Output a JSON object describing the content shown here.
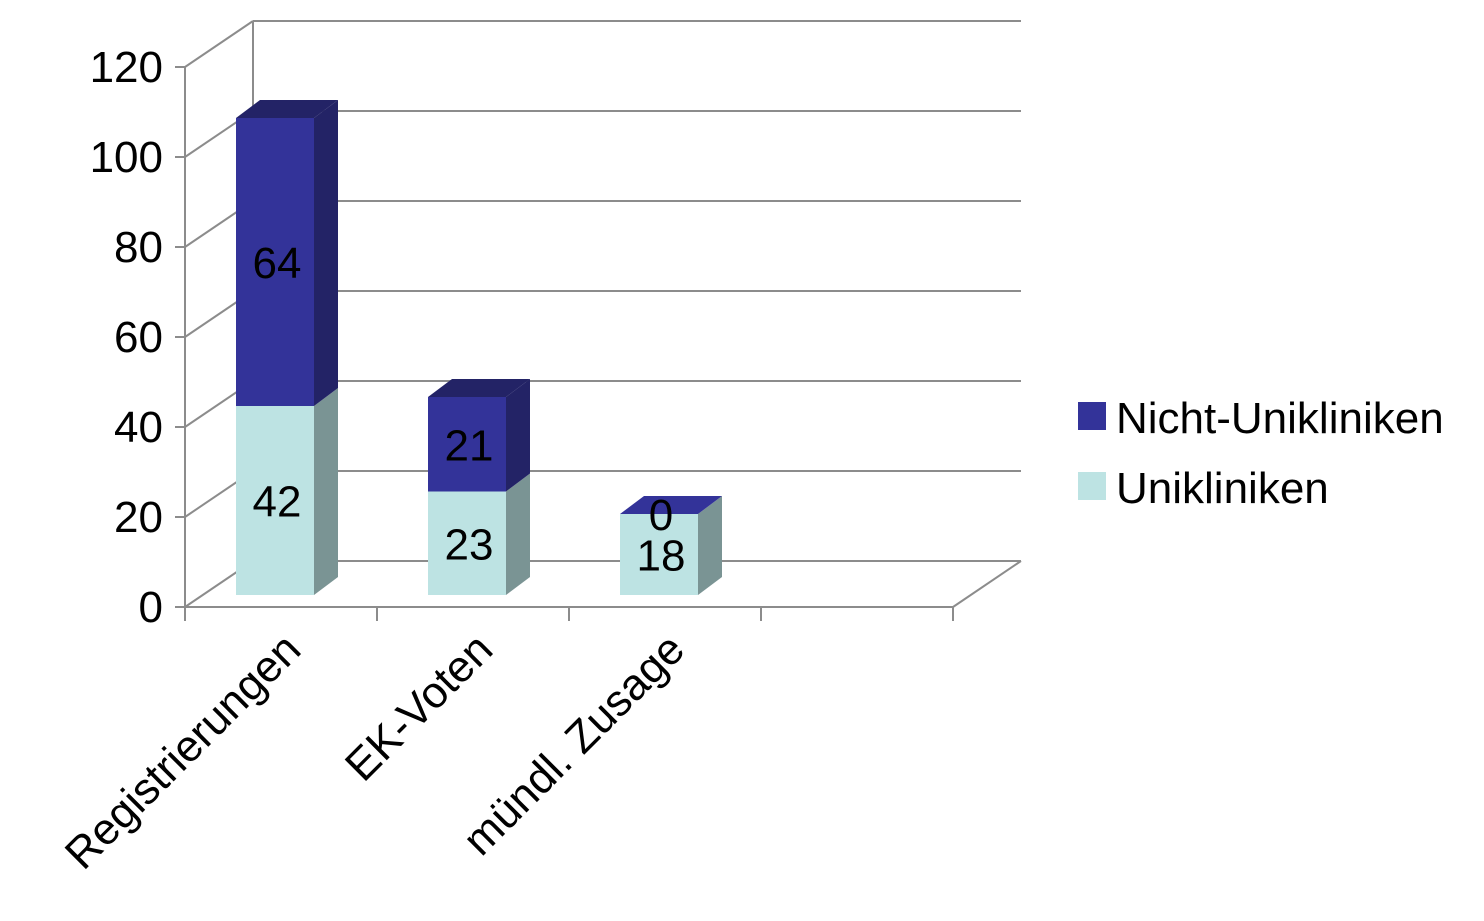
{
  "chart_data": {
    "type": "bar",
    "stacked": true,
    "style": "3d",
    "categories": [
      "Registrierungen",
      "EK-Voten",
      "mündl. Zusage"
    ],
    "series": [
      {
        "name": "Unikliniken",
        "values": [
          42,
          23,
          18
        ],
        "color": "#bde3e3",
        "side_color": "#7a9494"
      },
      {
        "name": "Nicht-Unikliniken",
        "values": [
          64,
          21,
          0
        ],
        "color": "#333399",
        "side_color": "#232366"
      }
    ],
    "ylim": [
      0,
      120
    ],
    "yticks": [
      0,
      20,
      40,
      60,
      80,
      100,
      120
    ],
    "grid": true,
    "legend": "right",
    "title": "",
    "xlabel": "",
    "ylabel": ""
  }
}
